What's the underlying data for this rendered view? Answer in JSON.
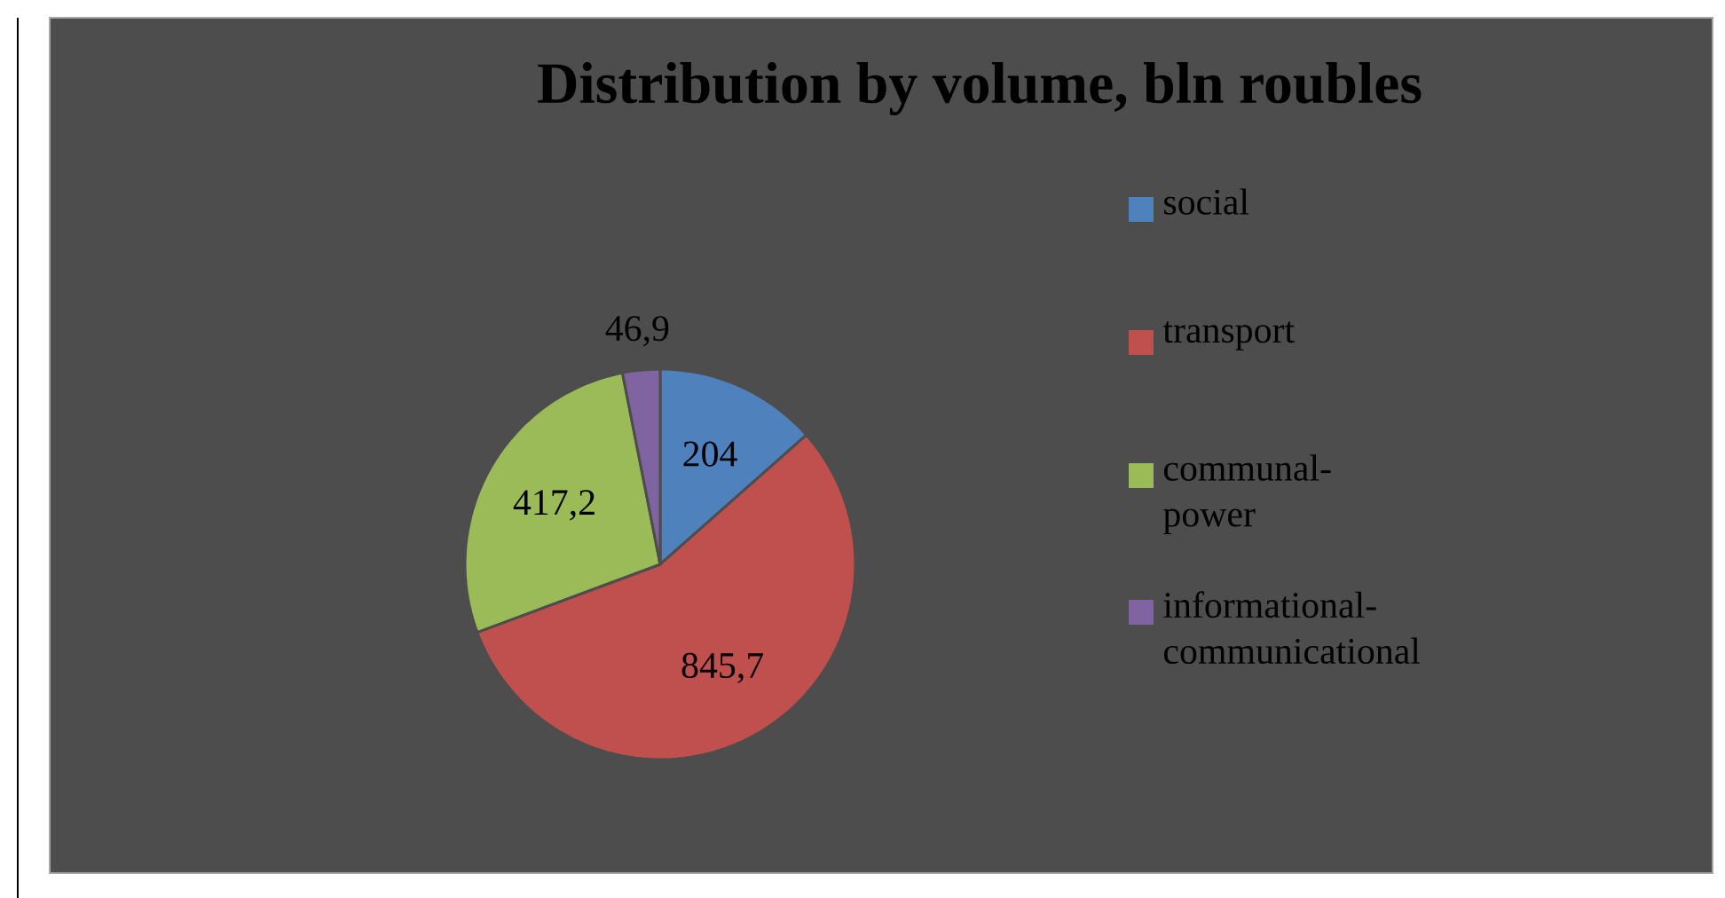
{
  "chart_data": {
    "type": "pie",
    "title": "Distribution by volume, bln roubles",
    "categories": [
      "social",
      "transport",
      "communal-power",
      "informational-communicational"
    ],
    "values": [
      204,
      845.7,
      417.2,
      46.9
    ],
    "value_labels": [
      "204",
      "845,7",
      "417,2",
      "46,9"
    ],
    "colors": [
      "#4f81bd",
      "#c0504d",
      "#9bbb59",
      "#8064a2"
    ],
    "legend": "right"
  }
}
